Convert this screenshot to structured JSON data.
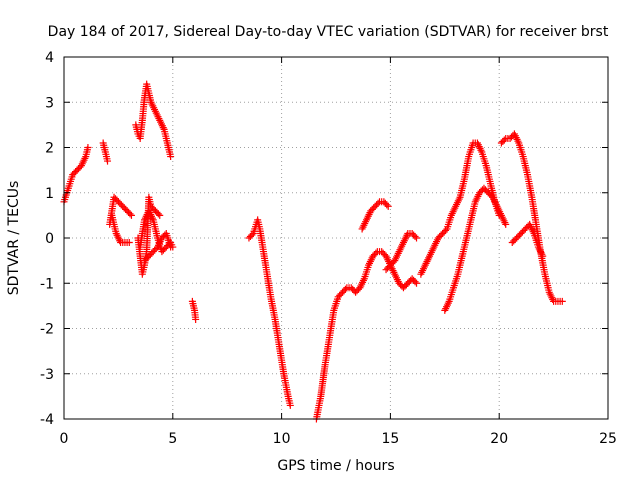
{
  "chart_data": {
    "type": "scatter",
    "title": "Day 184 of 2017, Sidereal Day-to-day VTEC variation (SDTVAR) for receiver brst",
    "xlabel": "GPS time / hours",
    "ylabel": "SDTVAR / TECUs",
    "xlim": [
      0,
      25
    ],
    "ylim": [
      -4,
      4
    ],
    "xticks": [
      "0",
      "5",
      "10",
      "15",
      "20",
      "25"
    ],
    "yticks": [
      "4",
      "3",
      "2",
      "1",
      "0",
      "-1",
      "-2",
      "-3",
      "-4"
    ],
    "grid": true,
    "marker": "plus",
    "color": "#ff0000",
    "segments": [
      {
        "x": [
          0.0,
          0.2,
          0.4,
          0.6,
          0.8,
          1.0,
          1.1
        ],
        "y": [
          0.8,
          1.1,
          1.4,
          1.5,
          1.6,
          1.8,
          2.0
        ]
      },
      {
        "x": [
          1.8,
          1.9,
          2.0
        ],
        "y": [
          2.1,
          1.9,
          1.7
        ]
      },
      {
        "x": [
          2.1,
          2.3,
          2.5,
          2.7,
          2.9,
          3.1
        ],
        "y": [
          0.3,
          0.9,
          0.8,
          0.7,
          0.6,
          0.5
        ]
      },
      {
        "x": [
          2.2,
          2.4,
          2.6,
          2.8,
          3.0
        ],
        "y": [
          0.5,
          0.1,
          -0.1,
          -0.1,
          -0.1
        ]
      },
      {
        "x": [
          3.3,
          3.4,
          3.5,
          3.6,
          3.7,
          3.8,
          3.9,
          4.0,
          4.2,
          4.4,
          4.6,
          4.8,
          4.9
        ],
        "y": [
          2.5,
          2.3,
          2.2,
          2.6,
          3.1,
          3.4,
          3.2,
          3.0,
          2.8,
          2.6,
          2.4,
          2.0,
          1.8
        ]
      },
      {
        "x": [
          3.4,
          3.5,
          3.6,
          3.7,
          3.8,
          3.9,
          4.0,
          4.2,
          4.4
        ],
        "y": [
          0.0,
          -0.4,
          -0.8,
          -0.6,
          -0.3,
          0.9,
          0.7,
          0.6,
          0.5
        ]
      },
      {
        "x": [
          3.5,
          3.7,
          3.9,
          4.1,
          4.3,
          4.5,
          4.7,
          4.9,
          5.0
        ],
        "y": [
          -0.2,
          0.4,
          0.6,
          0.4,
          0.0,
          -0.3,
          -0.2,
          -0.1,
          -0.2
        ]
      },
      {
        "x": [
          3.7,
          3.9,
          4.1,
          4.3,
          4.5,
          4.7,
          4.9
        ],
        "y": [
          -0.5,
          -0.4,
          -0.3,
          -0.2,
          0.0,
          0.1,
          -0.2
        ]
      },
      {
        "x": [
          5.9,
          6.0,
          6.05
        ],
        "y": [
          -1.4,
          -1.6,
          -1.8
        ]
      },
      {
        "x": [
          8.5,
          8.7,
          8.9,
          9.0,
          9.1,
          9.2,
          9.3,
          9.4,
          9.5,
          9.7,
          9.9,
          10.1,
          10.3,
          10.4
        ],
        "y": [
          0.0,
          0.1,
          0.4,
          0.2,
          -0.1,
          -0.4,
          -0.7,
          -1.0,
          -1.3,
          -1.8,
          -2.4,
          -3.0,
          -3.5,
          -3.7
        ]
      },
      {
        "x": [
          11.6,
          11.8,
          12.0,
          12.2,
          12.4,
          12.6,
          12.8,
          13.0,
          13.2,
          13.4,
          13.6,
          13.8,
          14.0,
          14.2,
          14.4,
          14.6,
          14.8,
          15.0,
          15.2,
          15.4,
          15.6,
          15.8,
          16.0,
          16.2
        ],
        "y": [
          -4.0,
          -3.5,
          -2.8,
          -2.2,
          -1.6,
          -1.3,
          -1.2,
          -1.1,
          -1.1,
          -1.2,
          -1.1,
          -0.9,
          -0.6,
          -0.4,
          -0.3,
          -0.3,
          -0.4,
          -0.6,
          -0.8,
          -1.0,
          -1.1,
          -1.0,
          -0.9,
          -1.0
        ]
      },
      {
        "x": [
          13.7,
          13.9,
          14.1,
          14.3,
          14.5,
          14.7,
          14.9
        ],
        "y": [
          0.2,
          0.4,
          0.6,
          0.7,
          0.8,
          0.8,
          0.7
        ]
      },
      {
        "x": [
          14.8,
          15.0,
          15.2,
          15.4,
          15.6,
          15.8,
          16.0,
          16.2
        ],
        "y": [
          -0.7,
          -0.6,
          -0.5,
          -0.3,
          -0.1,
          0.1,
          0.1,
          0.0
        ]
      },
      {
        "x": [
          16.4,
          16.6,
          16.8,
          17.0,
          17.2,
          17.4,
          17.6,
          17.8,
          18.0,
          18.2,
          18.4,
          18.6,
          18.8,
          19.0,
          19.2,
          19.4,
          19.6,
          19.8,
          20.0
        ],
        "y": [
          -0.8,
          -0.6,
          -0.4,
          -0.2,
          0.0,
          0.1,
          0.2,
          0.5,
          0.7,
          0.9,
          1.3,
          1.8,
          2.1,
          2.1,
          1.9,
          1.6,
          1.2,
          0.8,
          0.5
        ]
      },
      {
        "x": [
          17.5,
          17.7,
          17.9,
          18.1,
          18.3,
          18.5,
          18.7,
          18.9,
          19.1,
          19.3,
          19.5,
          19.7,
          19.9,
          20.1,
          20.3
        ],
        "y": [
          -1.6,
          -1.4,
          -1.1,
          -0.8,
          -0.4,
          0.0,
          0.4,
          0.8,
          1.0,
          1.1,
          1.0,
          0.9,
          0.7,
          0.5,
          0.3
        ]
      },
      {
        "x": [
          20.1,
          20.3,
          20.5,
          20.7,
          20.9,
          21.1,
          21.3,
          21.5,
          21.7,
          21.9,
          22.1,
          22.3,
          22.5,
          22.7,
          22.9
        ],
        "y": [
          2.1,
          2.2,
          2.2,
          2.3,
          2.1,
          1.8,
          1.4,
          0.9,
          0.3,
          -0.3,
          -0.8,
          -1.2,
          -1.4,
          -1.4,
          -1.4
        ]
      },
      {
        "x": [
          20.6,
          20.8,
          21.0,
          21.2,
          21.4,
          21.6,
          21.8,
          22.0
        ],
        "y": [
          -0.1,
          0.0,
          0.1,
          0.2,
          0.3,
          0.1,
          -0.2,
          -0.4
        ]
      }
    ]
  }
}
